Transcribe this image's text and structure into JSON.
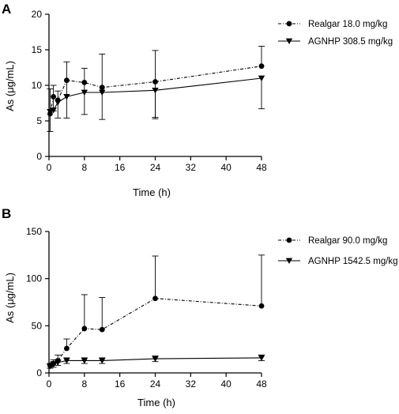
{
  "chart_data": [
    {
      "panel": "A",
      "type": "line",
      "xlabel": "Time (h)",
      "ylabel": "As (μg/mL)",
      "xlim": [
        0,
        48
      ],
      "ylim": [
        0,
        20
      ],
      "xticks": [
        0,
        8,
        16,
        24,
        32,
        40,
        48
      ],
      "yticks": [
        0,
        5,
        10,
        15,
        20
      ],
      "legend_position": "top-right",
      "series": [
        {
          "name": "Realgar 18.0 mg/kg",
          "marker": "circle",
          "line_style": "dash-dot",
          "x": [
            0.25,
            1,
            2,
            4,
            8,
            12,
            24,
            48
          ],
          "y": [
            6.0,
            8.4,
            7.9,
            10.7,
            10.4,
            9.7,
            10.5,
            12.7
          ],
          "err_upper": [
            3.5,
            1.6,
            1.3,
            2.6,
            2.0,
            4.7,
            4.4,
            2.8
          ],
          "err_lower": [
            2.5,
            2.0,
            2.5,
            5.3,
            4.5,
            4.5,
            5.0,
            0
          ]
        },
        {
          "name": "AGNHP 308.5 mg/kg",
          "marker": "triangle-down",
          "line_style": "solid",
          "x": [
            0.25,
            1,
            2,
            4,
            8,
            12,
            24,
            48
          ],
          "y": [
            6.3,
            6.5,
            7.6,
            8.4,
            9.0,
            9.0,
            9.3,
            11.0
          ],
          "err_upper": [
            0,
            0,
            0,
            0,
            0,
            0,
            0,
            0
          ],
          "err_lower": [
            0,
            0,
            0,
            0,
            0,
            0,
            4.0,
            4.3
          ]
        }
      ]
    },
    {
      "panel": "B",
      "type": "line",
      "xlabel": "Time (h)",
      "ylabel": "As (μg/mL)",
      "xlim": [
        0,
        48
      ],
      "ylim": [
        0,
        150
      ],
      "xticks": [
        0,
        8,
        16,
        24,
        32,
        40,
        48
      ],
      "yticks": [
        0,
        50,
        100,
        150
      ],
      "legend_position": "top-right",
      "series": [
        {
          "name": "Realgar 90.0 mg/kg",
          "marker": "circle",
          "line_style": "dash-dot",
          "x": [
            0.25,
            1,
            2,
            4,
            8,
            12,
            24,
            48
          ],
          "y": [
            8,
            10,
            13,
            26,
            47,
            46,
            79,
            71
          ],
          "err_upper": [
            2,
            4,
            6,
            10,
            36,
            34,
            45,
            54
          ],
          "err_lower": [
            0,
            0,
            0,
            0,
            0,
            0,
            0,
            0
          ]
        },
        {
          "name": "AGNHP 1542.5 mg/kg",
          "marker": "triangle-down",
          "line_style": "solid",
          "x": [
            0.25,
            1,
            2,
            4,
            8,
            12,
            24,
            48
          ],
          "y": [
            7,
            9,
            11,
            13,
            13,
            13,
            15,
            16
          ],
          "err_upper": [
            2,
            3,
            3,
            3,
            3,
            3,
            3,
            3
          ],
          "err_lower": [
            2,
            3,
            3,
            3,
            3,
            3,
            3,
            3
          ]
        }
      ]
    }
  ]
}
